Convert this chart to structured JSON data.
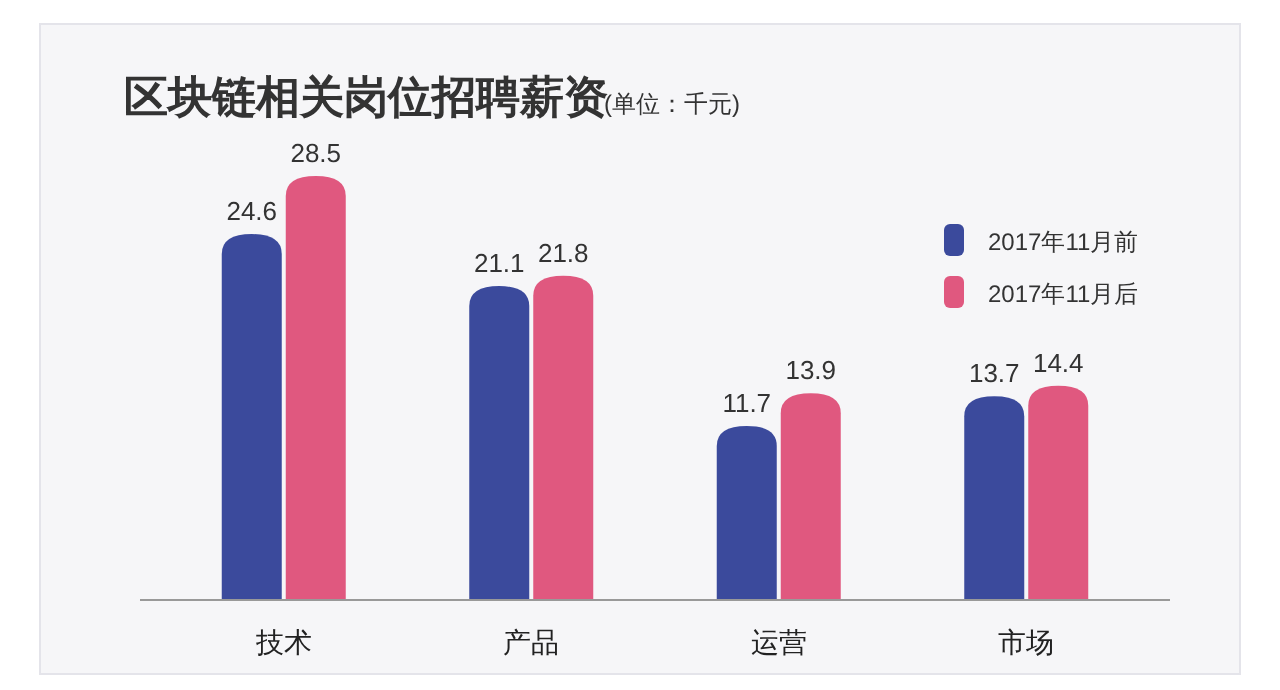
{
  "chart_data": {
    "type": "bar",
    "title": "区块链相关岗位招聘薪资",
    "subtitle": "(单位：千元)",
    "categories": [
      "技术",
      "产品",
      "运营",
      "市场"
    ],
    "series": [
      {
        "name": "2017年11月前",
        "color": "#3b4a9c",
        "values": [
          24.6,
          21.1,
          11.7,
          13.7
        ]
      },
      {
        "name": "2017年11月后",
        "color": "#e0587f",
        "values": [
          28.5,
          21.8,
          13.9,
          14.4
        ]
      }
    ],
    "data_labels": true,
    "legend": "right"
  }
}
